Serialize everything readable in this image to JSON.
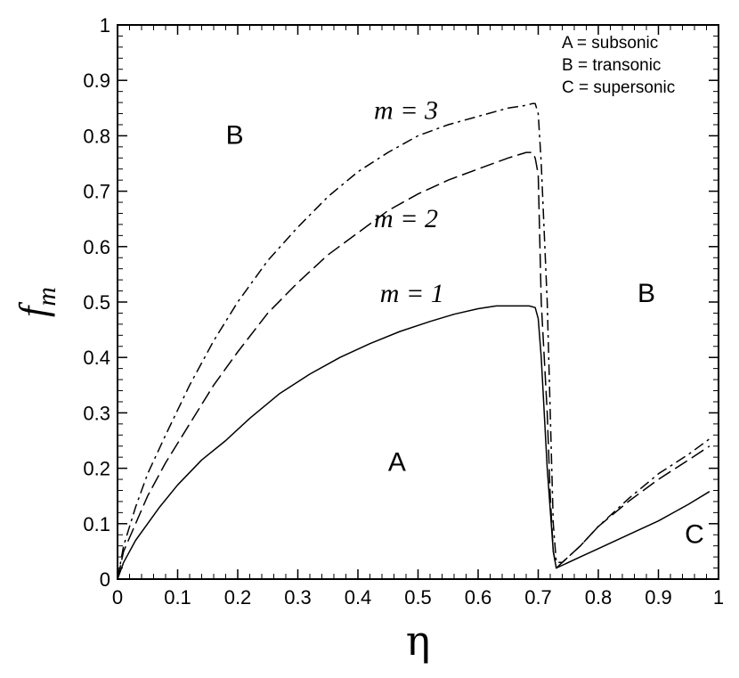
{
  "chart_data": {
    "type": "line",
    "title": "",
    "xlabel": "η",
    "ylabel": "f",
    "ylabel_subscript": "m",
    "xlim": [
      0,
      1
    ],
    "ylim": [
      0,
      1
    ],
    "xticks": [
      "0",
      "0.1",
      "0.2",
      "0.3",
      "0.4",
      "0.5",
      "0.6",
      "0.7",
      "0.8",
      "0.9",
      "1"
    ],
    "yticks": [
      "0",
      "0.1",
      "0.2",
      "0.3",
      "0.4",
      "0.5",
      "0.6",
      "0.7",
      "0.8",
      "0.9",
      "1"
    ],
    "grid": false,
    "legend_position": "top-right",
    "legend": [
      "A = subsonic",
      "B = transonic",
      "C = supersonic"
    ],
    "series": [
      {
        "name": "m = 1",
        "dash": "solid",
        "x": [
          0,
          0.01,
          0.03,
          0.05,
          0.07,
          0.1,
          0.14,
          0.18,
          0.22,
          0.27,
          0.32,
          0.37,
          0.42,
          0.47,
          0.52,
          0.56,
          0.6,
          0.63,
          0.66,
          0.685,
          0.695,
          0.7,
          0.705,
          0.715,
          0.725,
          0.73,
          0.74,
          0.77,
          0.8,
          0.85,
          0.9,
          0.95,
          0.985
        ],
        "y": [
          0,
          0.03,
          0.07,
          0.1,
          0.13,
          0.17,
          0.215,
          0.25,
          0.29,
          0.335,
          0.37,
          0.4,
          0.425,
          0.447,
          0.465,
          0.478,
          0.488,
          0.493,
          0.493,
          0.493,
          0.49,
          0.47,
          0.4,
          0.2,
          0.05,
          0.02,
          0.025,
          0.04,
          0.055,
          0.08,
          0.105,
          0.135,
          0.158
        ]
      },
      {
        "name": "m = 2",
        "dash": "dashed",
        "x": [
          0,
          0.01,
          0.03,
          0.05,
          0.08,
          0.12,
          0.16,
          0.2,
          0.25,
          0.3,
          0.35,
          0.4,
          0.45,
          0.5,
          0.55,
          0.6,
          0.65,
          0.68,
          0.69,
          0.695,
          0.7,
          0.705,
          0.715,
          0.72,
          0.725,
          0.73,
          0.74,
          0.77,
          0.8,
          0.85,
          0.9,
          0.95,
          0.985
        ],
        "y": [
          0,
          0.05,
          0.1,
          0.15,
          0.21,
          0.28,
          0.35,
          0.41,
          0.48,
          0.535,
          0.585,
          0.625,
          0.665,
          0.695,
          0.72,
          0.74,
          0.76,
          0.77,
          0.77,
          0.76,
          0.73,
          0.5,
          0.3,
          0.15,
          0.05,
          0.02,
          0.03,
          0.06,
          0.095,
          0.14,
          0.18,
          0.215,
          0.24
        ]
      },
      {
        "name": "m = 3",
        "dash": "dashdot",
        "x": [
          0,
          0.01,
          0.03,
          0.05,
          0.08,
          0.12,
          0.16,
          0.2,
          0.25,
          0.3,
          0.35,
          0.4,
          0.45,
          0.5,
          0.55,
          0.6,
          0.65,
          0.68,
          0.69,
          0.695,
          0.7,
          0.705,
          0.715,
          0.72,
          0.725,
          0.73,
          0.74,
          0.77,
          0.8,
          0.85,
          0.9,
          0.95,
          0.985
        ],
        "y": [
          0,
          0.06,
          0.13,
          0.19,
          0.26,
          0.35,
          0.43,
          0.5,
          0.575,
          0.635,
          0.69,
          0.735,
          0.77,
          0.8,
          0.82,
          0.835,
          0.85,
          0.855,
          0.858,
          0.858,
          0.84,
          0.75,
          0.5,
          0.3,
          0.1,
          0.03,
          0.03,
          0.06,
          0.095,
          0.145,
          0.19,
          0.225,
          0.253
        ]
      }
    ],
    "curve_labels": [
      {
        "text": "m = 3",
        "x": 0.48,
        "y": 0.83
      },
      {
        "text": "m = 2",
        "x": 0.48,
        "y": 0.635
      },
      {
        "text": "m = 1",
        "x": 0.49,
        "y": 0.5
      }
    ],
    "region_labels": [
      {
        "text": "B",
        "x": 0.195,
        "y": 0.785
      },
      {
        "text": "B",
        "x": 0.88,
        "y": 0.5
      },
      {
        "text": "A",
        "x": 0.465,
        "y": 0.195
      },
      {
        "text": "C",
        "x": 0.96,
        "y": 0.065
      }
    ]
  }
}
